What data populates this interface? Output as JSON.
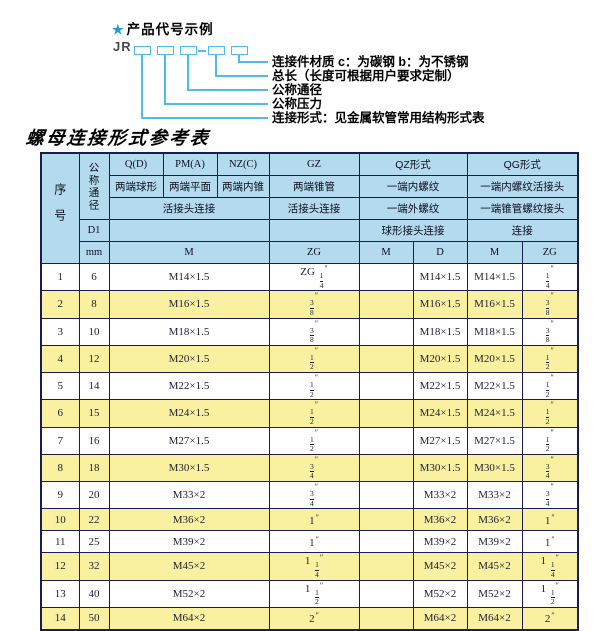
{
  "diagram": {
    "star": "★",
    "title": "产品代号示例",
    "prefix": "JR",
    "labels": [
      "连接件材质  c：为碳钢  b：为不锈钢",
      "总长（长度可根据用户要求定制）",
      "公称通径",
      "公称压力",
      "连接形式：见金属软管常用结构形式表"
    ]
  },
  "table": {
    "title": "螺母连接形式参考表",
    "header": {
      "seq": "序号",
      "dn": "公称通径",
      "d1": "D1",
      "mm": "mm",
      "form_qd": "Q(D)",
      "form_pm": "PM(A)",
      "form_nz": "NZ(C)",
      "form_gz": "GZ",
      "form_qz": "QZ形式",
      "form_qg": "QG形式",
      "desc_qd": "两端球形",
      "desc_pm": "两端平面",
      "desc_nz": "两端内锥",
      "desc_gz": "两端锥管",
      "desc_qz": "一端内螺纹",
      "desc_qg": "一端内螺纹活接头",
      "conn_left": "活接头连接",
      "conn_gz": "活接头连接",
      "conn_qz": "一端外螺纹",
      "conn_qg": "一端锥管螺纹接头",
      "conn2_qz": "球形接头连接",
      "conn2_qg": "连接",
      "unit_m": "M",
      "unit_zg": "ZG",
      "unit_qz_m": "M",
      "unit_qz_d": "D",
      "unit_qg_m": "M",
      "unit_qg_zg": "ZG"
    },
    "rows": [
      {
        "seq": "1",
        "dn": "6",
        "m": "M14×1.5",
        "zg": "ZG 1/4\"",
        "qz_m": "",
        "qz_d": "M14×1.5",
        "qg_m": "M14×1.5",
        "qg_zg": "1/4\""
      },
      {
        "seq": "2",
        "dn": "8",
        "m": "M16×1.5",
        "zg": "3/8\"",
        "qz_m": "",
        "qz_d": "M16×1.5",
        "qg_m": "M16×1.5",
        "qg_zg": "3/8\""
      },
      {
        "seq": "3",
        "dn": "10",
        "m": "M18×1.5",
        "zg": "3/8\"",
        "qz_m": "",
        "qz_d": "M18×1.5",
        "qg_m": "M18×1.5",
        "qg_zg": "3/8\""
      },
      {
        "seq": "4",
        "dn": "12",
        "m": "M20×1.5",
        "zg": "1/2\"",
        "qz_m": "",
        "qz_d": "M20×1.5",
        "qg_m": "M20×1.5",
        "qg_zg": "1/2\""
      },
      {
        "seq": "5",
        "dn": "14",
        "m": "M22×1.5",
        "zg": "1/2\"",
        "qz_m": "",
        "qz_d": "M22×1.5",
        "qg_m": "M22×1.5",
        "qg_zg": "1/2\""
      },
      {
        "seq": "6",
        "dn": "15",
        "m": "M24×1.5",
        "zg": "1/2\"",
        "qz_m": "",
        "qz_d": "M24×1.5",
        "qg_m": "M24×1.5",
        "qg_zg": "1/2\""
      },
      {
        "seq": "7",
        "dn": "16",
        "m": "M27×1.5",
        "zg": "1/2\"",
        "qz_m": "",
        "qz_d": "M27×1.5",
        "qg_m": "M27×1.5",
        "qg_zg": "1/2\""
      },
      {
        "seq": "8",
        "dn": "18",
        "m": "M30×1.5",
        "zg": "3/4\"",
        "qz_m": "",
        "qz_d": "M30×1.5",
        "qg_m": "M30×1.5",
        "qg_zg": "3/4\""
      },
      {
        "seq": "9",
        "dn": "20",
        "m": "M33×2",
        "zg": "3/4\"",
        "qz_m": "",
        "qz_d": "M33×2",
        "qg_m": "M33×2",
        "qg_zg": "3/4\""
      },
      {
        "seq": "10",
        "dn": "22",
        "m": "M36×2",
        "zg": "1\"",
        "qz_m": "",
        "qz_d": "M36×2",
        "qg_m": "M36×2",
        "qg_zg": "1\""
      },
      {
        "seq": "11",
        "dn": "25",
        "m": "M39×2",
        "zg": "1\"",
        "qz_m": "",
        "qz_d": "M39×2",
        "qg_m": "M39×2",
        "qg_zg": "1\""
      },
      {
        "seq": "12",
        "dn": "32",
        "m": "M45×2",
        "zg": "1 1/4\"",
        "qz_m": "",
        "qz_d": "M45×2",
        "qg_m": "M45×2",
        "qg_zg": "1 1/4\""
      },
      {
        "seq": "13",
        "dn": "40",
        "m": "M52×2",
        "zg": "1 1/2\"",
        "qz_m": "",
        "qz_d": "M52×2",
        "qg_m": "M52×2",
        "qg_zg": "1 1/2\""
      },
      {
        "seq": "14",
        "dn": "50",
        "m": "M64×2",
        "zg": "2\"",
        "qz_m": "",
        "qz_d": "M64×2",
        "qg_m": "M64×2",
        "qg_zg": "2\""
      }
    ]
  },
  "colors": {
    "header_bg": "#b3daed",
    "alt_row_bg": "#f9f1a0",
    "border": "#1b1b4d",
    "diagram_line": "#4cbde9",
    "star_blue": "#1f9cd8"
  }
}
